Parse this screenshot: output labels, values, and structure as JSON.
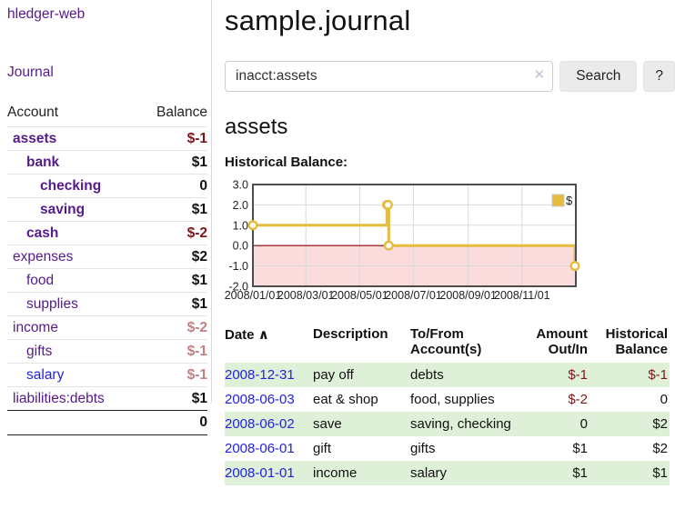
{
  "colors": {
    "purple": "#551a8b",
    "blue": "#2222dd",
    "neg_strong": "#801519",
    "neg_soft": "#c08084",
    "stripe": "#dff0d8",
    "gold": "#e4bc3f",
    "pink": "#fadcdc",
    "zero": "#8b0000",
    "grid": "#d9d9d9",
    "chart_border": "#4d4d4d"
  },
  "sidebar": {
    "brand": "hledger-web",
    "journal_link": "Journal",
    "header": {
      "account": "Account",
      "balance": "Balance"
    },
    "accounts": [
      {
        "name": "assets",
        "indent": 0,
        "bold": true,
        "balance": "$-1"
      },
      {
        "name": "bank",
        "indent": 1,
        "bold": true,
        "balance": "$1"
      },
      {
        "name": "checking",
        "indent": 2,
        "bold": true,
        "balance": "0"
      },
      {
        "name": "saving",
        "indent": 2,
        "bold": true,
        "balance": "$1"
      },
      {
        "name": "cash",
        "indent": 1,
        "bold": true,
        "balance": "$-2"
      },
      {
        "name": "expenses",
        "indent": 0,
        "bold": false,
        "balance": "$2"
      },
      {
        "name": "food",
        "indent": 1,
        "bold": false,
        "balance": "$1"
      },
      {
        "name": "supplies",
        "indent": 1,
        "bold": false,
        "balance": "$1"
      },
      {
        "name": "income",
        "indent": 0,
        "bold": false,
        "balance": "$-2"
      },
      {
        "name": "gifts",
        "indent": 1,
        "bold": false,
        "balance": "$-1"
      },
      {
        "name": "salary",
        "indent": 1,
        "bold": false,
        "balance": "$-1",
        "unvisited": true
      },
      {
        "name": "liabilities:debts",
        "indent": 0,
        "bold": false,
        "balance": "$1"
      }
    ],
    "total": "0"
  },
  "main": {
    "title": "sample.journal",
    "search": {
      "value": "inacct:assets",
      "clear_icon": "✕",
      "button_label": "Search",
      "help_label": "?"
    },
    "account_heading": "assets"
  },
  "chart_data": {
    "type": "line",
    "title": "Historical Balance:",
    "legend": {
      "label": "$",
      "position": "top-right"
    },
    "ylim": [
      -2.0,
      3.0
    ],
    "y_ticks": [
      "3.0",
      "2.0",
      "1.0",
      "0.0",
      "-1.0",
      "-2.0"
    ],
    "x_ticks": [
      "2008/01/01",
      "2008/03/01",
      "2008/05/01",
      "2008/07/01",
      "2008/09/01",
      "2008/11/01"
    ],
    "x_range": [
      "2008-01-01",
      "2009-01-01"
    ],
    "grid": true,
    "negative_region_shaded": true,
    "series": [
      {
        "name": "$",
        "step": true,
        "points": [
          [
            "2008-01-01",
            1
          ],
          [
            "2008-06-01",
            2
          ],
          [
            "2008-06-02",
            2
          ],
          [
            "2008-06-03",
            0
          ],
          [
            "2008-12-31",
            -1
          ]
        ]
      }
    ]
  },
  "register": {
    "headers": {
      "date": "Date",
      "sort_indicator": "∧",
      "description": "Description",
      "accounts": "To/From Account(s)",
      "amount": "Amount Out/In",
      "balance": "Historical Balance"
    },
    "rows": [
      {
        "date": "2008-12-31",
        "description": "pay off",
        "accounts": "debts",
        "amount": "$-1",
        "balance": "$-1"
      },
      {
        "date": "2008-06-03",
        "description": "eat & shop",
        "accounts": "food, supplies",
        "amount": "$-2",
        "balance": "0"
      },
      {
        "date": "2008-06-02",
        "description": "save",
        "accounts": "saving, checking",
        "amount": "0",
        "balance": "$2"
      },
      {
        "date": "2008-06-01",
        "description": "gift",
        "accounts": "gifts",
        "amount": "$1",
        "balance": "$2"
      },
      {
        "date": "2008-01-01",
        "description": "income",
        "accounts": "salary",
        "amount": "$1",
        "balance": "$1"
      }
    ]
  }
}
